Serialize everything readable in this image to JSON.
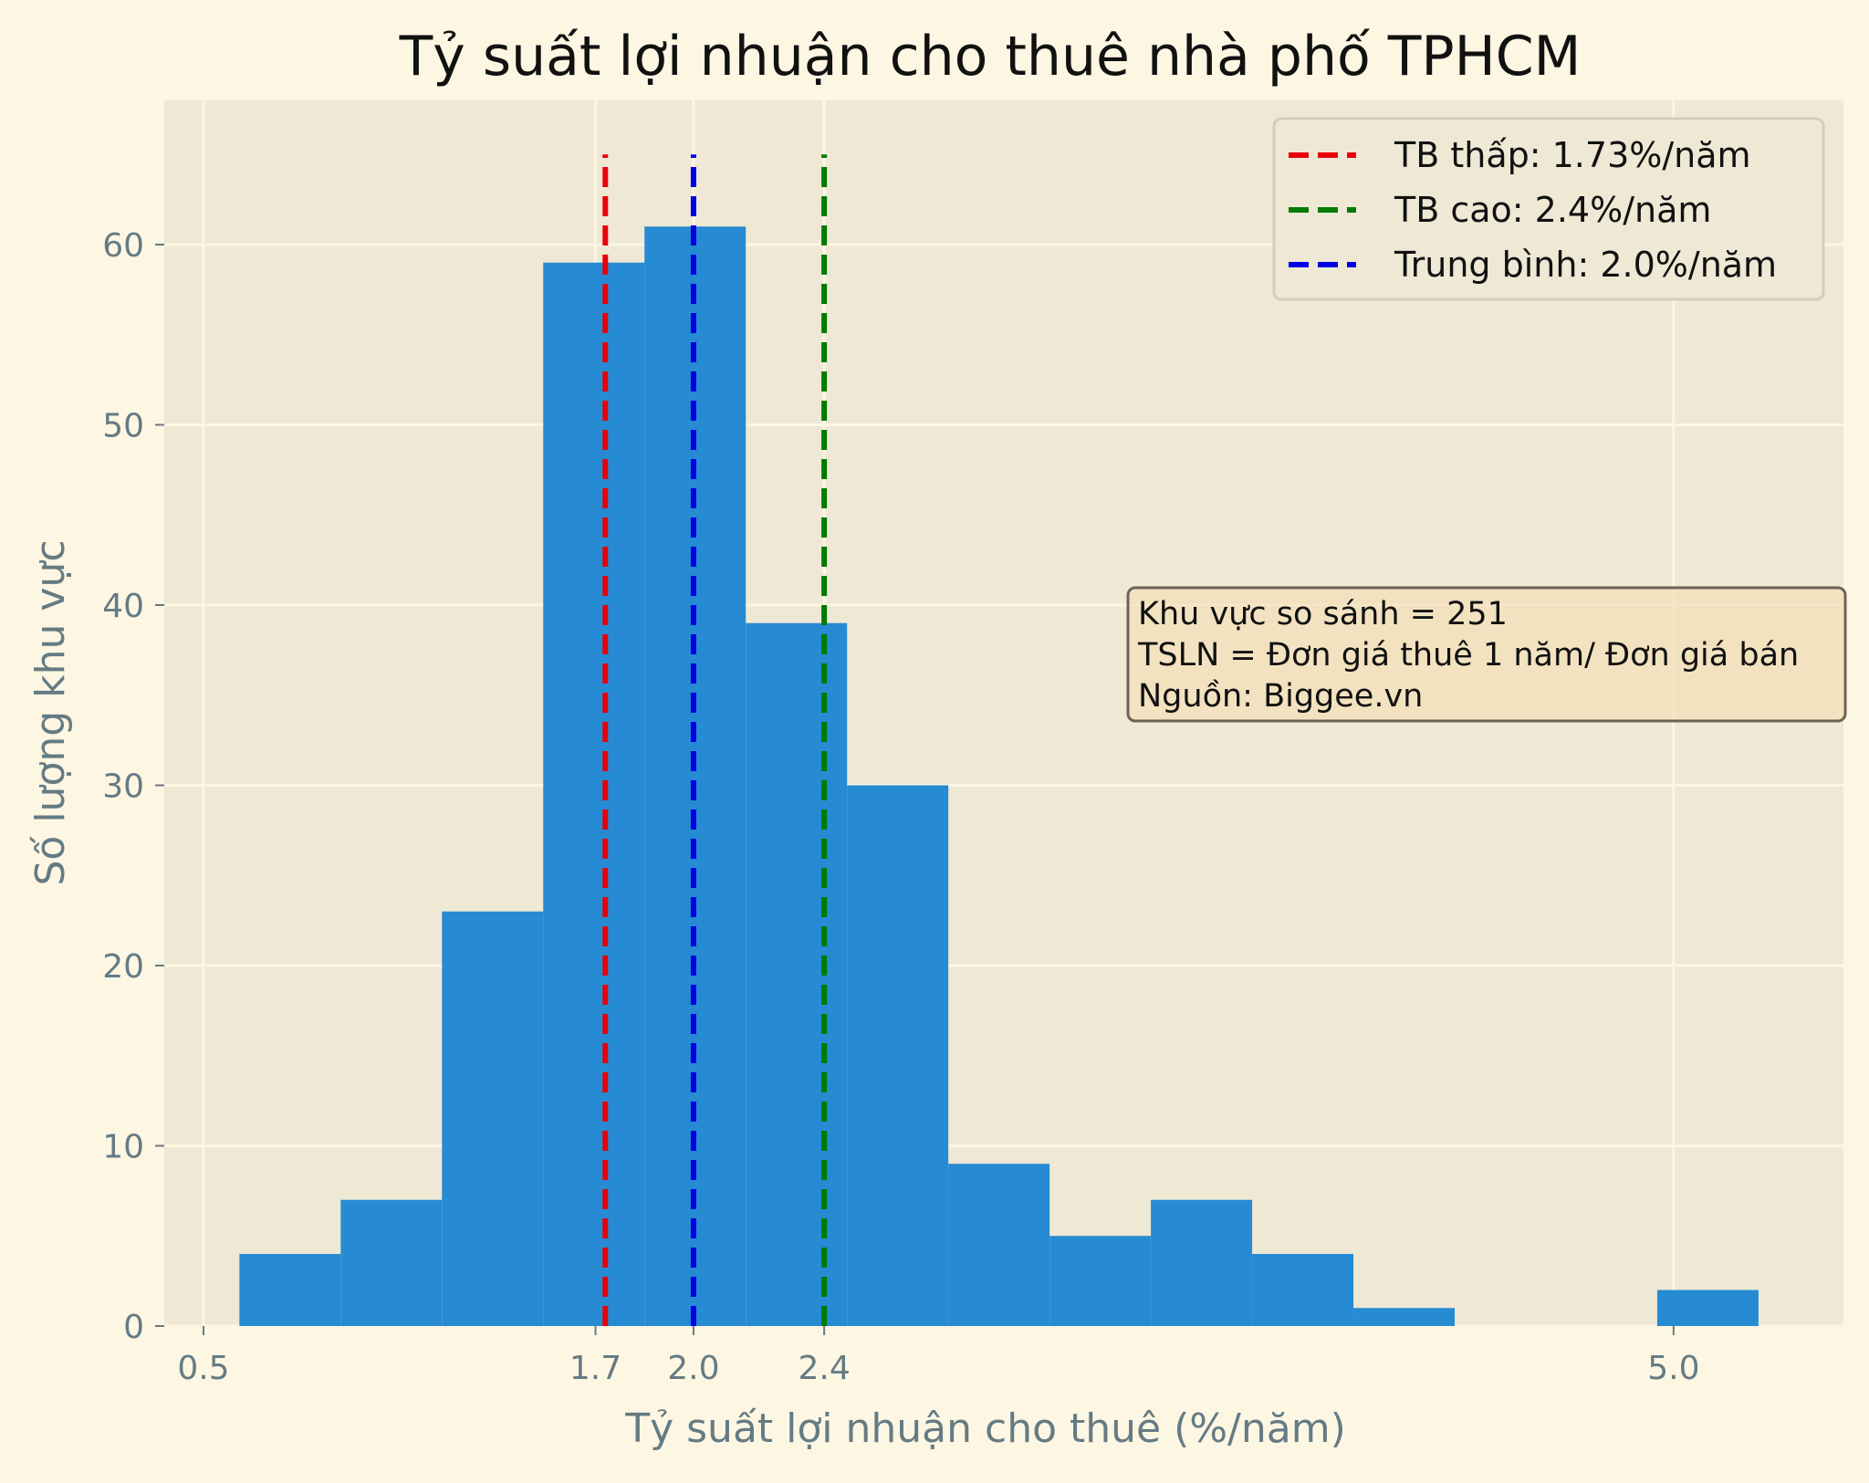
{
  "chart_data": {
    "type": "bar",
    "title": "Tỷ suất lợi nhuận cho thuê nhà phố TPHCM",
    "xlabel": "Tỷ suất lợi nhuận cho thuê (%/năm)",
    "ylabel": "Số lượng khu vực",
    "xlim": [
      0.38,
      5.52
    ],
    "ylim": [
      0,
      68
    ],
    "xticks": [
      {
        "value": 0.5,
        "label": "0.5"
      },
      {
        "value": 1.7,
        "label": "1.7"
      },
      {
        "value": 2.0,
        "label": "2.0"
      },
      {
        "value": 2.4,
        "label": "2.4"
      },
      {
        "value": 5.0,
        "label": "5.0"
      }
    ],
    "yticks": [
      {
        "value": 0,
        "label": "0"
      },
      {
        "value": 10,
        "label": "10"
      },
      {
        "value": 20,
        "label": "20"
      },
      {
        "value": 30,
        "label": "30"
      },
      {
        "value": 40,
        "label": "40"
      },
      {
        "value": 50,
        "label": "50"
      },
      {
        "value": 60,
        "label": "60"
      }
    ],
    "grid": true,
    "bar_color": "#268bd2",
    "bins": [
      {
        "start": 0.61,
        "end": 0.92,
        "count": 4
      },
      {
        "start": 0.92,
        "end": 1.23,
        "count": 7
      },
      {
        "start": 1.23,
        "end": 1.54,
        "count": 23
      },
      {
        "start": 1.54,
        "end": 1.85,
        "count": 59
      },
      {
        "start": 1.85,
        "end": 2.16,
        "count": 61
      },
      {
        "start": 2.16,
        "end": 2.47,
        "count": 39
      },
      {
        "start": 2.47,
        "end": 2.78,
        "count": 30
      },
      {
        "start": 2.78,
        "end": 3.09,
        "count": 9
      },
      {
        "start": 3.09,
        "end": 3.4,
        "count": 5
      },
      {
        "start": 3.4,
        "end": 3.71,
        "count": 7
      },
      {
        "start": 3.71,
        "end": 4.02,
        "count": 4
      },
      {
        "start": 4.02,
        "end": 4.33,
        "count": 1
      },
      {
        "start": 4.95,
        "end": 5.26,
        "count": 2
      }
    ],
    "vlines": [
      {
        "x": 1.73,
        "color": "#e8000b",
        "label": "TB thấp: 1.73%/năm"
      },
      {
        "x": 2.4,
        "color": "#007a00",
        "label": "TB cao: 2.4%/năm"
      },
      {
        "x": 2.0,
        "color": "#0000e6",
        "label": "Trung bình: 2.0%/năm"
      }
    ],
    "vline_top": 65,
    "legend_position": "upper-right",
    "annotation": {
      "lines": [
        "Khu vực so sánh = 251",
        "TSLN = Đơn giá thuê 1 năm/ Đơn giá bán",
        "Nguồn: Biggee.vn"
      ]
    }
  }
}
